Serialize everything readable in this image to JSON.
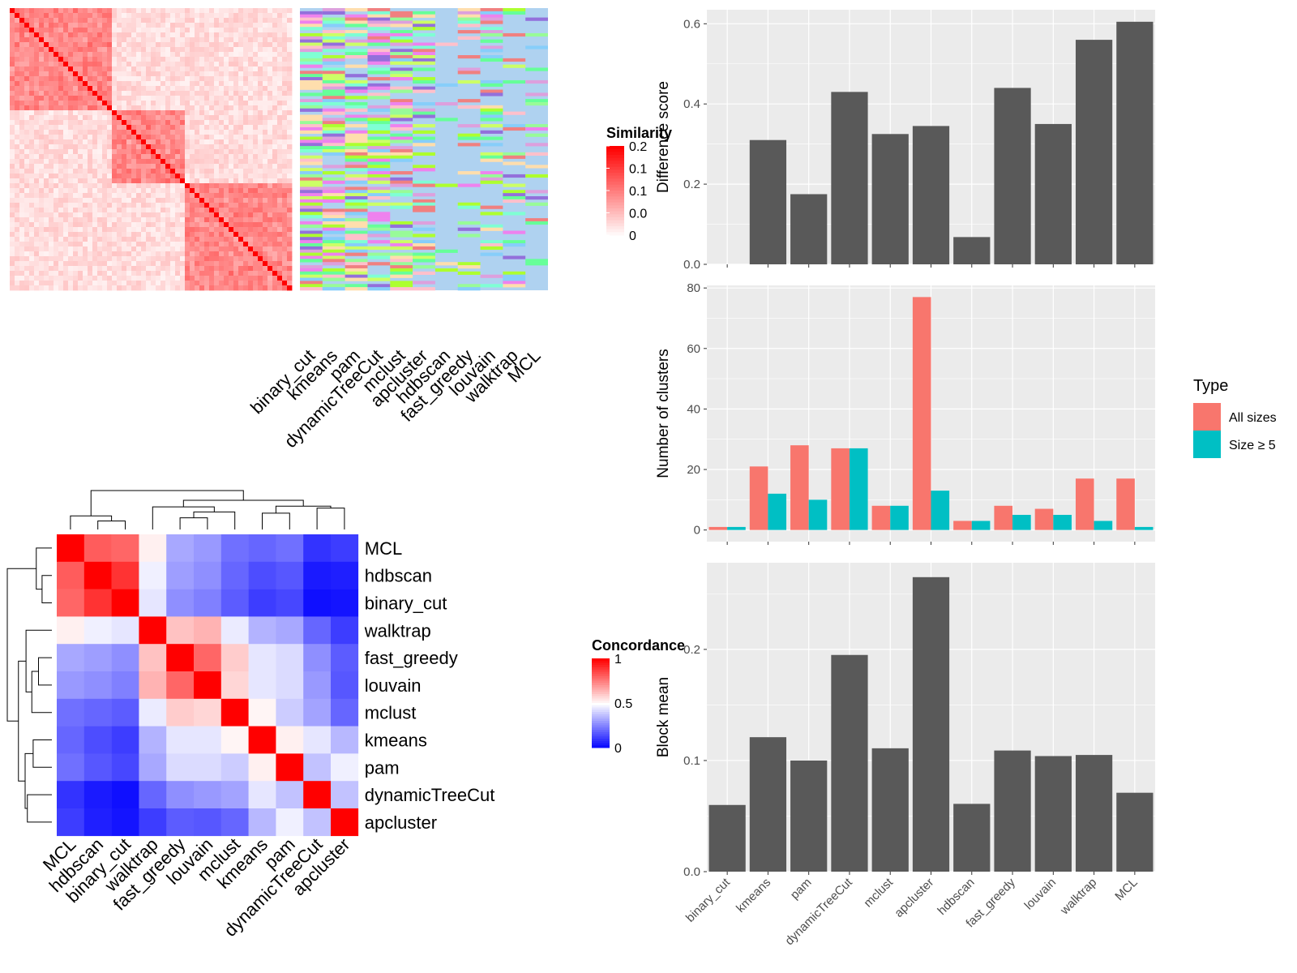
{
  "colors": {
    "panel_bg": "#EBEBEB",
    "grid": "#FFFFFF",
    "bar_dark": "#595959",
    "all_sizes": "#F8766D",
    "size_ge_5": "#00BFC4",
    "similarity_high": "#FF0000",
    "similarity_low": "#FFFFFF",
    "concordance_high": "#FF0000",
    "concordance_mid": "#FFFFFF",
    "concordance_low": "#0000FF",
    "class_bg": "#AFD2F0"
  },
  "similarity_heatmap": {
    "legend_title": "Similarity",
    "legend_labels": [
      "0.2",
      "0.1",
      "0.1",
      "0.0",
      "0"
    ],
    "methods": [
      "binary_cut",
      "kmeans",
      "pam",
      "dynamicTreeCut",
      "mclust",
      "apcluster",
      "hdbscan",
      "fast_greedy",
      "louvain",
      "walktrap",
      "MCL"
    ]
  },
  "concordance_heatmap": {
    "legend_title": "Concordance",
    "legend_labels": [
      "1",
      "0.5",
      "0"
    ],
    "row_labels": [
      "MCL",
      "hdbscan",
      "binary_cut",
      "walktrap",
      "fast_greedy",
      "louvain",
      "mclust",
      "kmeans",
      "pam",
      "dynamicTreeCut",
      "apcluster"
    ],
    "col_labels": [
      "MCL",
      "hdbscan",
      "binary_cut",
      "walktrap",
      "fast_greedy",
      "louvain",
      "mclust",
      "kmeans",
      "pam",
      "dynamicTreeCut",
      "apcluster"
    ],
    "values": [
      [
        1.0,
        0.82,
        0.8,
        0.53,
        0.33,
        0.3,
        0.22,
        0.2,
        0.22,
        0.1,
        0.12
      ],
      [
        0.82,
        1.0,
        0.9,
        0.47,
        0.31,
        0.28,
        0.2,
        0.15,
        0.17,
        0.05,
        0.06
      ],
      [
        0.8,
        0.9,
        1.0,
        0.45,
        0.28,
        0.25,
        0.18,
        0.12,
        0.14,
        0.03,
        0.04
      ],
      [
        0.53,
        0.47,
        0.45,
        1.0,
        0.62,
        0.65,
        0.46,
        0.35,
        0.33,
        0.2,
        0.12
      ],
      [
        0.33,
        0.31,
        0.28,
        0.62,
        1.0,
        0.8,
        0.6,
        0.45,
        0.43,
        0.28,
        0.18
      ],
      [
        0.3,
        0.28,
        0.25,
        0.65,
        0.8,
        1.0,
        0.58,
        0.45,
        0.43,
        0.3,
        0.17
      ],
      [
        0.22,
        0.2,
        0.18,
        0.46,
        0.6,
        0.58,
        1.0,
        0.52,
        0.4,
        0.32,
        0.2
      ],
      [
        0.2,
        0.15,
        0.12,
        0.35,
        0.45,
        0.45,
        0.52,
        1.0,
        0.53,
        0.45,
        0.36
      ],
      [
        0.22,
        0.17,
        0.14,
        0.33,
        0.43,
        0.43,
        0.4,
        0.53,
        1.0,
        0.38,
        0.47
      ],
      [
        0.1,
        0.05,
        0.03,
        0.2,
        0.28,
        0.3,
        0.32,
        0.45,
        0.38,
        1.0,
        0.38
      ],
      [
        0.12,
        0.06,
        0.04,
        0.12,
        0.18,
        0.17,
        0.2,
        0.36,
        0.47,
        0.38,
        1.0
      ]
    ]
  },
  "chart_data": [
    {
      "type": "bar",
      "ylabel": "Difference score",
      "categories": [
        "binary_cut",
        "kmeans",
        "pam",
        "dynamicTreeCut",
        "mclust",
        "apcluster",
        "hdbscan",
        "fast_greedy",
        "louvain",
        "walktrap",
        "MCL"
      ],
      "values": [
        0.0,
        0.31,
        0.175,
        0.43,
        0.325,
        0.345,
        0.068,
        0.44,
        0.35,
        0.56,
        0.605
      ],
      "ylim": [
        0,
        0.635
      ],
      "yticks": [
        "0.0",
        "0.2",
        "0.4",
        "0.6"
      ],
      "show_x_labels": false
    },
    {
      "type": "bar",
      "ylabel": "Number of clusters",
      "categories": [
        "binary_cut",
        "kmeans",
        "pam",
        "dynamicTreeCut",
        "mclust",
        "apcluster",
        "hdbscan",
        "fast_greedy",
        "louvain",
        "walktrap",
        "MCL"
      ],
      "legend_title": "Type",
      "legend_position": "right",
      "series": [
        {
          "name": "All sizes",
          "values": [
            1,
            21,
            28,
            27,
            8,
            77,
            3,
            8,
            7,
            17,
            17
          ]
        },
        {
          "name": "Size ≥ 5",
          "values": [
            1,
            12,
            10,
            27,
            8,
            13,
            3,
            5,
            5,
            3,
            1
          ]
        }
      ],
      "ylim": [
        -3.85,
        80.85
      ],
      "yticks": [
        "0",
        "20",
        "40",
        "60",
        "80"
      ],
      "show_x_labels": false
    },
    {
      "type": "bar",
      "ylabel": "Block mean",
      "categories": [
        "binary_cut",
        "kmeans",
        "pam",
        "dynamicTreeCut",
        "mclust",
        "apcluster",
        "hdbscan",
        "fast_greedy",
        "louvain",
        "walktrap",
        "MCL"
      ],
      "values": [
        0.06,
        0.121,
        0.1,
        0.195,
        0.111,
        0.265,
        0.061,
        0.109,
        0.104,
        0.105,
        0.071
      ],
      "ylim": [
        0,
        0.278
      ],
      "yticks": [
        "0.0",
        "0.1",
        "0.2"
      ],
      "show_x_labels": true
    }
  ]
}
